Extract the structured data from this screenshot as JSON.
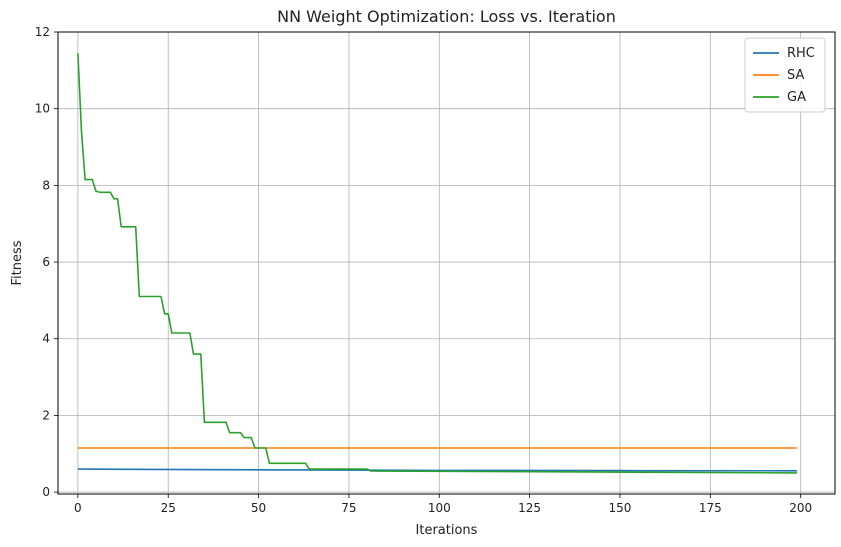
{
  "chart_data": {
    "type": "line",
    "title": "NN Weight Optimization: Loss vs. Iteration",
    "xlabel": "Iterations",
    "ylabel": "Fitness",
    "xlim": [
      -5.5,
      209.5
    ],
    "ylim": [
      -0.05,
      12
    ],
    "xticks": [
      0,
      25,
      50,
      75,
      100,
      125,
      150,
      175,
      200
    ],
    "yticks": [
      0,
      2,
      4,
      6,
      8,
      10,
      12
    ],
    "grid": true,
    "legend_position": "top-right",
    "series": [
      {
        "name": "RHC",
        "color": "#1f77b4",
        "x": [
          0,
          50,
          100,
          150,
          199
        ],
        "y": [
          0.6,
          0.58,
          0.565,
          0.56,
          0.555
        ]
      },
      {
        "name": "SA",
        "color": "#ff7f0e",
        "x": [
          0,
          50,
          100,
          150,
          199
        ],
        "y": [
          1.15,
          1.15,
          1.15,
          1.15,
          1.15
        ]
      },
      {
        "name": "GA",
        "color": "#2ca02c",
        "x": [
          0,
          1,
          2,
          4,
          5,
          6,
          9,
          10,
          11,
          12,
          13,
          16,
          17,
          23,
          24,
          25,
          26,
          31,
          32,
          34,
          35,
          41,
          42,
          45,
          46,
          48,
          49,
          52,
          53,
          63,
          64,
          80,
          81,
          199
        ],
        "y": [
          11.45,
          9.4,
          8.15,
          8.15,
          7.85,
          7.82,
          7.82,
          7.65,
          7.65,
          6.92,
          6.92,
          6.92,
          5.1,
          5.1,
          4.65,
          4.65,
          4.15,
          4.15,
          3.6,
          3.6,
          1.82,
          1.82,
          1.55,
          1.55,
          1.42,
          1.42,
          1.15,
          1.15,
          0.75,
          0.75,
          0.6,
          0.6,
          0.55,
          0.5
        ]
      }
    ]
  }
}
